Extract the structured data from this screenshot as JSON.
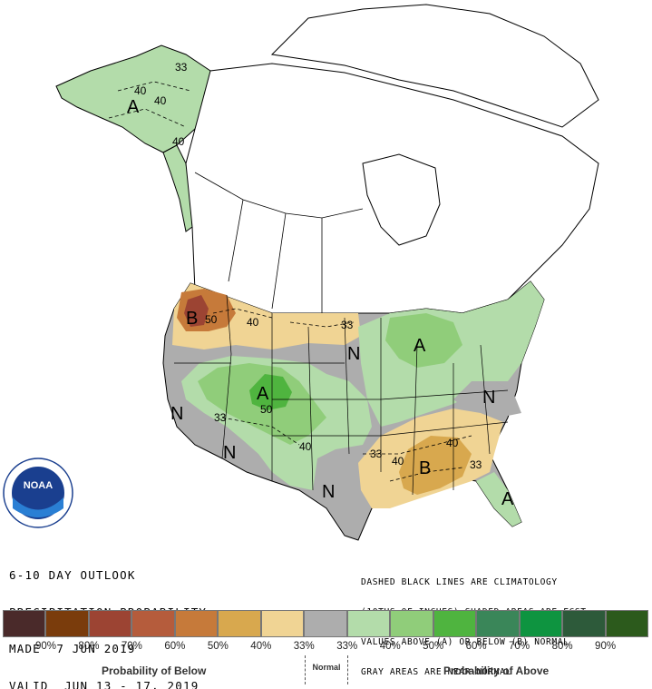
{
  "outlook": {
    "line1": "6-10 DAY OUTLOOK",
    "line2": "PRECIPITATION PROBABILITY",
    "line3": "MADE  7 JUN 2019",
    "line4": "VALID  JUN 13 - 17, 2019"
  },
  "notes": {
    "line1": "DASHED BLACK LINES ARE CLIMATOLOGY",
    "line2": "(10THS OF INCHES) SHADED AREAS ARE FCST",
    "line3": "VALUES ABOVE (A) OR BELOW (B) NORMAL",
    "line4": "GRAY AREAS ARE NEAR-NORMAL"
  },
  "logo": {
    "text": "NOAA"
  },
  "map_labels": {
    "alaska_a": "A",
    "alaska_33": "33",
    "alaska_40a": "40",
    "alaska_40b": "40",
    "alaska_40c": "40",
    "pnw_b": "B",
    "pnw_50": "50",
    "mt_40": "40",
    "nd_33": "33",
    "mn_n": "N",
    "gl_a": "A",
    "ne_n": "N",
    "central_a": "A",
    "central_50": "50",
    "west_n": "N",
    "sw_33": "33",
    "sw_n": "N",
    "tx_40": "40",
    "tx_n": "N",
    "se_33a": "33",
    "se_40a": "40",
    "se_40b": "40",
    "se_b": "B",
    "se_33b": "33",
    "fl_a": "A"
  },
  "legend": {
    "colors": [
      "#4a2a2a",
      "#7a3c0c",
      "#9c4433",
      "#b55c3c",
      "#c67a3a",
      "#d8a84e",
      "#f0d494",
      "#adadad",
      "#b3dcaa",
      "#90cd7a",
      "#4fb43f",
      "#3a8659",
      "#0e9440",
      "#2d5a3a",
      "#2c5a1c"
    ],
    "labels": [
      "90%",
      "80%",
      "70%",
      "60%",
      "50%",
      "40%",
      "33%",
      "33%",
      "40%",
      "50%",
      "60%",
      "70%",
      "80%",
      "90%"
    ],
    "below_label": "Probability of Below",
    "normal_label": "Normal",
    "above_label": "Probability of Above"
  }
}
